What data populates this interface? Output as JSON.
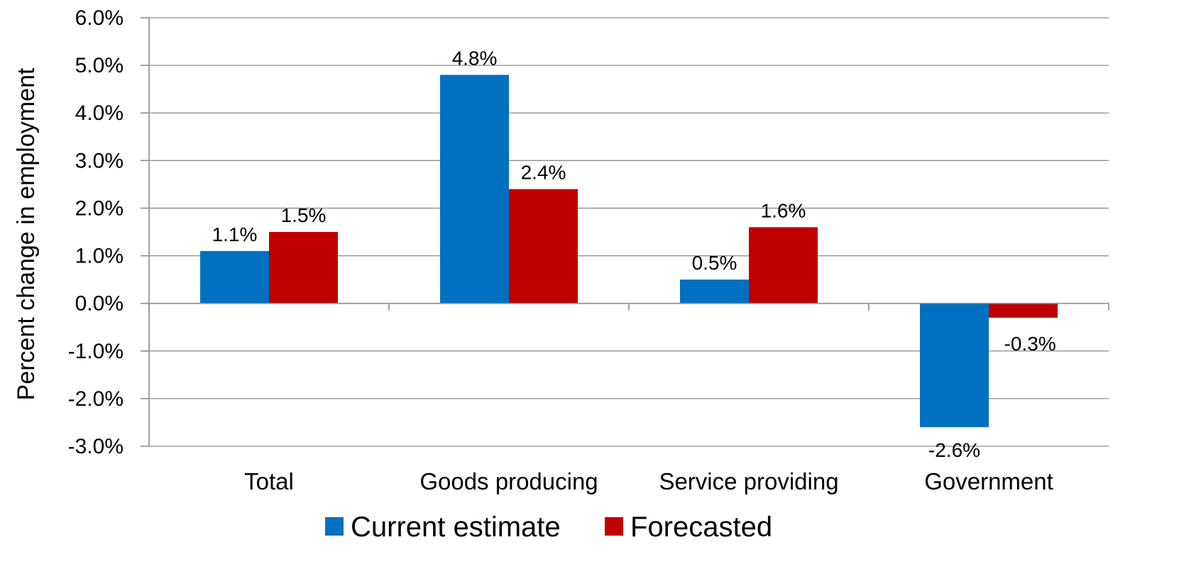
{
  "chart_data": {
    "type": "bar",
    "categories": [
      "Total",
      "Goods producing",
      "Service providing",
      "Government"
    ],
    "series": [
      {
        "name": "Current estimate",
        "color": "#0070c0",
        "values": [
          1.1,
          4.8,
          0.5,
          -2.6
        ],
        "labels": [
          "1.1%",
          "4.8%",
          "0.5%",
          "-2.6%"
        ]
      },
      {
        "name": "Forecasted",
        "color": "#c00000",
        "values": [
          1.5,
          2.4,
          1.6,
          -0.3
        ],
        "labels": [
          "1.5%",
          "2.4%",
          "1.6%",
          "-0.3%"
        ]
      }
    ],
    "ylabel": "Percent change in employment",
    "ylim": [
      -3.0,
      6.0
    ],
    "yticks": [
      6.0,
      5.0,
      4.0,
      3.0,
      2.0,
      1.0,
      0.0,
      -1.0,
      -2.0,
      -3.0
    ],
    "ytick_labels": [
      "6.0%",
      "5.0%",
      "4.0%",
      "3.0%",
      "2.0%",
      "1.0%",
      "0.0%",
      "-1.0%",
      "-2.0%",
      "-3.0%"
    ],
    "grid": true,
    "legend_position": "bottom"
  }
}
